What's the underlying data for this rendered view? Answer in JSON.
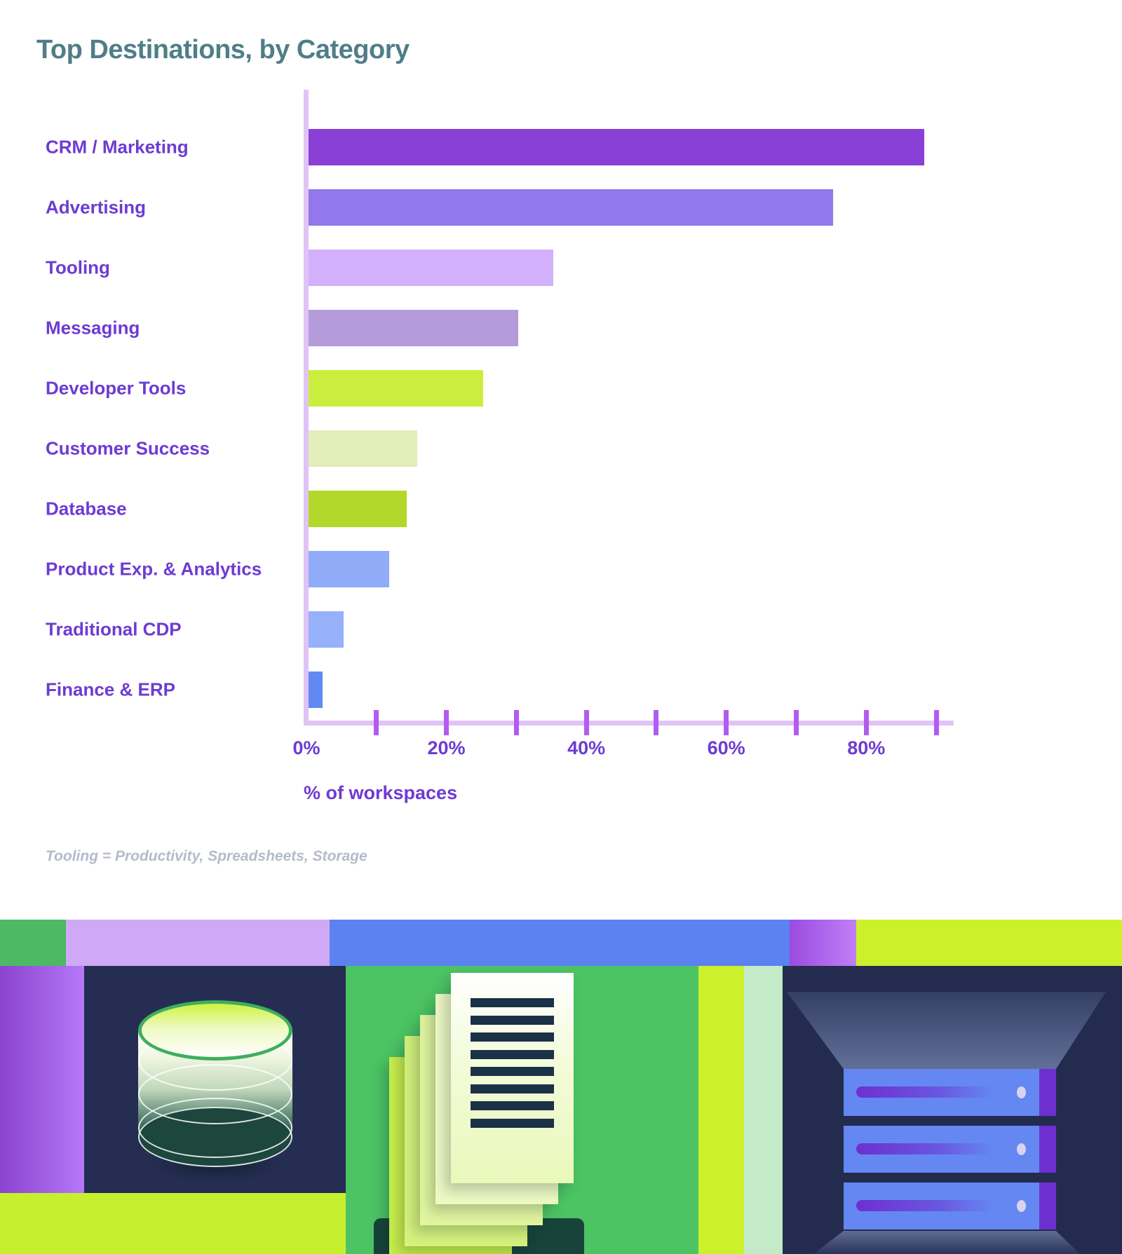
{
  "chart_data": {
    "type": "bar",
    "orientation": "horizontal",
    "title": "Top Destinations, by Category",
    "categories": [
      "CRM / Marketing",
      "Advertising",
      "Tooling",
      "Messaging",
      "Developer Tools",
      "Customer Success",
      "Database",
      "Product Exp. & Analytics",
      "Traditional CDP",
      "Finance & ERP"
    ],
    "values": [
      88,
      75,
      35,
      30,
      25,
      15.5,
      14,
      11.5,
      5,
      2
    ],
    "bar_colors": [
      "#8a3fd6",
      "#9377ec",
      "#d2b0fb",
      "#b39cd9",
      "#cbee3e",
      "#e3edb8",
      "#b1d82b",
      "#90acf8",
      "#97b0fa",
      "#6289f2"
    ],
    "xlabel": "% of workspaces",
    "xlim": [
      0,
      90
    ],
    "x_tick_step": 10,
    "x_label_step": 20,
    "x_tick_labels": [
      "0%",
      "20%",
      "40%",
      "60%",
      "80%"
    ],
    "grid": false,
    "legend": "none",
    "footnote": "Tooling = Productivity, Spreadsheets, Storage"
  },
  "colors": {
    "title_teal": "#4f7e88",
    "label_purple": "#6d3bd3",
    "axis_line_lilac": "#e0c3f7",
    "tick_purple": "#b15cf0",
    "footnote_gray": "#b4bbc9",
    "band_stripe_green": "#4db963",
    "band_stripe_lavender": "#cfa9f5",
    "band_stripe_blue": "#5b82f0",
    "band_stripe_purple_1": "#9a4ce0",
    "band_stripe_purple_2": "#c07ff6",
    "band_stripe_lime": "#cdf02c",
    "band_left_purple_1": "#8a43ce",
    "band_left_purple_2": "#b678f8",
    "band_navy": "#252e52",
    "band_navy_right": "#232c4e",
    "band_lime": "#c6f02e",
    "band_green_tile": "#4cc464",
    "band_mint": "#c3ebc7",
    "server_blue": "#6487f2",
    "server_cap_purple": "#6d2fd0",
    "server_led": "#d9d3ef",
    "cyl_rim_green": "#3fae5c",
    "cyl_dark_teal": "#1d463d",
    "doc_line_navy": "#1a3148",
    "doc_shadow_teal": "#17433a"
  }
}
